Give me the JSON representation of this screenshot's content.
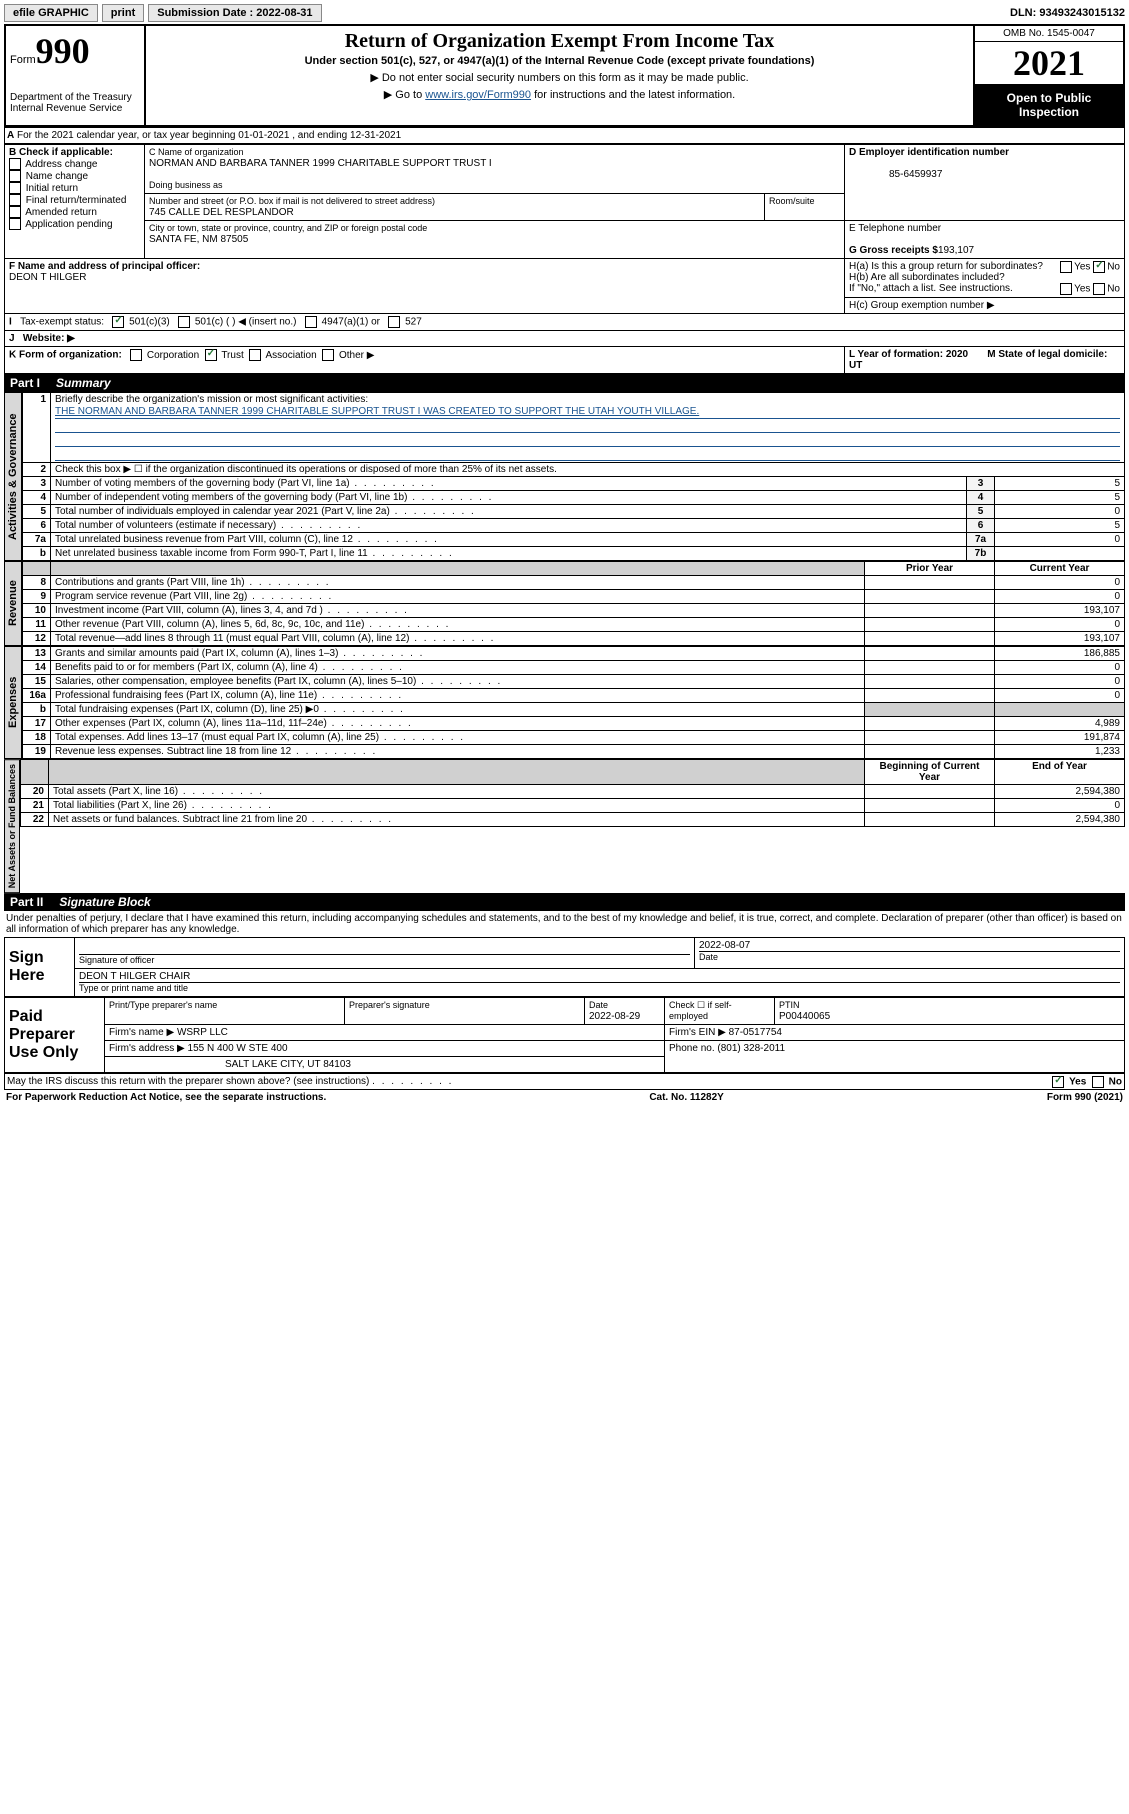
{
  "topbar": {
    "efile": "efile GRAPHIC",
    "print": "print",
    "sub_label": "Submission Date : 2022-08-31",
    "dln": "DLN: 93493243015132"
  },
  "header": {
    "form_label": "Form",
    "form_no": "990",
    "dept": "Department of the Treasury Internal Revenue Service",
    "title": "Return of Organization Exempt From Income Tax",
    "sub": "Under section 501(c), 527, or 4947(a)(1) of the Internal Revenue Code (except private foundations)",
    "note1": "▶ Do not enter social security numbers on this form as it may be made public.",
    "note2_pre": "▶ Go to ",
    "note2_link": "www.irs.gov/Form990",
    "note2_post": " for instructions and the latest information.",
    "omb": "OMB No. 1545-0047",
    "year": "2021",
    "inspect": "Open to Public Inspection"
  },
  "sectionA": {
    "line": "For the 2021 calendar year, or tax year beginning 01-01-2021   , and ending 12-31-2021",
    "b_label": "B Check if applicable:",
    "b_opts": [
      "Address change",
      "Name change",
      "Initial return",
      "Final return/terminated",
      "Amended return",
      "Application pending"
    ],
    "c_label": "C Name of organization",
    "c_name": "NORMAN AND BARBARA TANNER 1999 CHARITABLE SUPPORT TRUST I",
    "dba": "Doing business as",
    "street_label": "Number and street (or P.O. box if mail is not delivered to street address)",
    "room": "Room/suite",
    "street": "745 CALLE DEL RESPLANDOR",
    "city_label": "City or town, state or province, country, and ZIP or foreign postal code",
    "city": "SANTA FE, NM  87505",
    "d_label": "D Employer identification number",
    "d_val": "85-6459937",
    "e_label": "E Telephone number",
    "g_label": "G Gross receipts $",
    "g_val": "193,107",
    "f_label": "F  Name and address of principal officer:",
    "f_name": "DEON T HILGER",
    "ha": "H(a)  Is this a group return for subordinates?",
    "hb": "H(b)  Are all subordinates included?",
    "hb_note": "If \"No,\" attach a list. See instructions.",
    "hc": "H(c)  Group exemption number ▶",
    "yes": "Yes",
    "no": "No",
    "i_label": "Tax-exempt status:",
    "i_501c3": "501(c)(3)",
    "i_501c": "501(c) (  ) ◀ (insert no.)",
    "i_4947": "4947(a)(1) or",
    "i_527": "527",
    "j_label": "Website: ▶",
    "k_label": "K Form of organization:",
    "k_opts": [
      "Corporation",
      "Trust",
      "Association",
      "Other ▶"
    ],
    "l_label": "L Year of formation: 2020",
    "m_label": "M State of legal domicile: UT"
  },
  "part1_header": {
    "part": "Part I",
    "title": "Summary"
  },
  "governance": {
    "label": "Activities & Governance",
    "l1": "Briefly describe the organization's mission or most significant activities:",
    "l1_text": "THE NORMAN AND BARBARA TANNER 1999 CHARITABLE SUPPORT TRUST I WAS CREATED TO SUPPORT THE UTAH YOUTH VILLAGE.",
    "l2": "Check this box ▶ ☐  if the organization discontinued its operations or disposed of more than 25% of its net assets.",
    "rows": [
      {
        "n": "3",
        "t": "Number of voting members of the governing body (Part VI, line 1a)",
        "b": "3",
        "v": "5"
      },
      {
        "n": "4",
        "t": "Number of independent voting members of the governing body (Part VI, line 1b)",
        "b": "4",
        "v": "5"
      },
      {
        "n": "5",
        "t": "Total number of individuals employed in calendar year 2021 (Part V, line 2a)",
        "b": "5",
        "v": "0"
      },
      {
        "n": "6",
        "t": "Total number of volunteers (estimate if necessary)",
        "b": "6",
        "v": "5"
      },
      {
        "n": "7a",
        "t": "Total unrelated business revenue from Part VIII, column (C), line 12",
        "b": "7a",
        "v": "0"
      },
      {
        "n": "b",
        "t": "Net unrelated business taxable income from Form 990-T, Part I, line 11",
        "b": "7b",
        "v": ""
      }
    ]
  },
  "cols": {
    "prior": "Prior Year",
    "current": "Current Year",
    "boy": "Beginning of Current Year",
    "eoy": "End of Year"
  },
  "revenue": {
    "label": "Revenue",
    "rows": [
      {
        "n": "8",
        "t": "Contributions and grants (Part VIII, line 1h)",
        "p": "",
        "c": "0"
      },
      {
        "n": "9",
        "t": "Program service revenue (Part VIII, line 2g)",
        "p": "",
        "c": "0"
      },
      {
        "n": "10",
        "t": "Investment income (Part VIII, column (A), lines 3, 4, and 7d )",
        "p": "",
        "c": "193,107"
      },
      {
        "n": "11",
        "t": "Other revenue (Part VIII, column (A), lines 5, 6d, 8c, 9c, 10c, and 11e)",
        "p": "",
        "c": "0"
      },
      {
        "n": "12",
        "t": "Total revenue—add lines 8 through 11 (must equal Part VIII, column (A), line 12)",
        "p": "",
        "c": "193,107"
      }
    ]
  },
  "expenses": {
    "label": "Expenses",
    "rows": [
      {
        "n": "13",
        "t": "Grants and similar amounts paid (Part IX, column (A), lines 1–3)",
        "p": "",
        "c": "186,885"
      },
      {
        "n": "14",
        "t": "Benefits paid to or for members (Part IX, column (A), line 4)",
        "p": "",
        "c": "0"
      },
      {
        "n": "15",
        "t": "Salaries, other compensation, employee benefits (Part IX, column (A), lines 5–10)",
        "p": "",
        "c": "0"
      },
      {
        "n": "16a",
        "t": "Professional fundraising fees (Part IX, column (A), line 11e)",
        "p": "",
        "c": "0"
      },
      {
        "n": "b",
        "t": "Total fundraising expenses (Part IX, column (D), line 25) ▶0",
        "p": "gray",
        "c": "gray"
      },
      {
        "n": "17",
        "t": "Other expenses (Part IX, column (A), lines 11a–11d, 11f–24e)",
        "p": "",
        "c": "4,989"
      },
      {
        "n": "18",
        "t": "Total expenses. Add lines 13–17 (must equal Part IX, column (A), line 25)",
        "p": "",
        "c": "191,874"
      },
      {
        "n": "19",
        "t": "Revenue less expenses. Subtract line 18 from line 12",
        "p": "",
        "c": "1,233"
      }
    ]
  },
  "netassets": {
    "label": "Net Assets or Fund Balances",
    "rows": [
      {
        "n": "20",
        "t": "Total assets (Part X, line 16)",
        "p": "",
        "c": "2,594,380"
      },
      {
        "n": "21",
        "t": "Total liabilities (Part X, line 26)",
        "p": "",
        "c": "0"
      },
      {
        "n": "22",
        "t": "Net assets or fund balances. Subtract line 21 from line 20",
        "p": "",
        "c": "2,594,380"
      }
    ]
  },
  "part2_header": {
    "part": "Part II",
    "title": "Signature Block"
  },
  "sig": {
    "declaration": "Under penalties of perjury, I declare that I have examined this return, including accompanying schedules and statements, and to the best of my knowledge and belief, it is true, correct, and complete. Declaration of preparer (other than officer) is based on all information of which preparer has any knowledge.",
    "sign_here": "Sign Here",
    "sig_officer": "Signature of officer",
    "date": "Date",
    "date_val": "2022-08-07",
    "name": "DEON T HILGER  CHAIR",
    "name_label": "Type or print name and title",
    "paid": "Paid Preparer Use Only",
    "prep_name": "Print/Type preparer's name",
    "prep_sig": "Preparer's signature",
    "prep_date": "Date",
    "prep_date_val": "2022-08-29",
    "check_self": "Check ☐ if self-employed",
    "ptin": "PTIN",
    "ptin_val": "P00440065",
    "firm_name": "Firm's name   ▶ WSRP LLC",
    "firm_ein": "Firm's EIN ▶ 87-0517754",
    "firm_addr": "Firm's address ▶ 155 N 400 W STE 400",
    "firm_city": "SALT LAKE CITY, UT  84103",
    "phone": "Phone no. (801) 328-2011",
    "may_irs": "May the IRS discuss this return with the preparer shown above? (see instructions)"
  },
  "footer": {
    "left": "For Paperwork Reduction Act Notice, see the separate instructions.",
    "mid": "Cat. No. 11282Y",
    "right": "Form 990 (2021)"
  }
}
